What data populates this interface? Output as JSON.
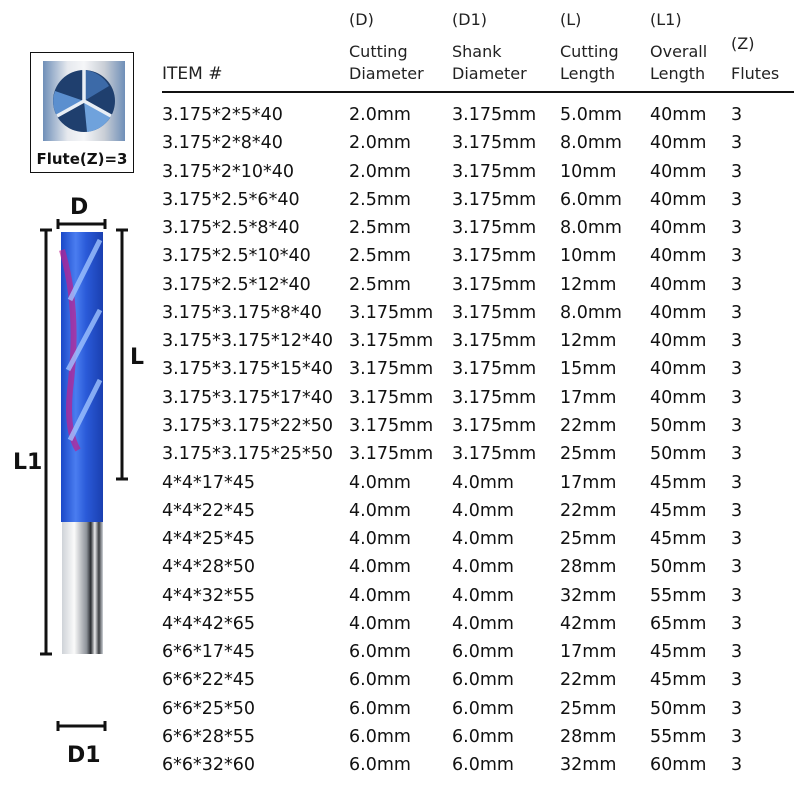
{
  "flute_badge": {
    "label": "Flute(Z)=3"
  },
  "diagram_labels": {
    "d": "D",
    "l": "L",
    "l1": "L1",
    "d1": "D1"
  },
  "columns": [
    {
      "code": "",
      "label1": "",
      "label2": "ITEM #"
    },
    {
      "code": "(D)",
      "label1": "Cutting",
      "label2": "Diameter"
    },
    {
      "code": "(D1)",
      "label1": "Shank",
      "label2": "Diameter"
    },
    {
      "code": "(L)",
      "label1": "Cutting",
      "label2": "Length"
    },
    {
      "code": "(L1)",
      "label1": "Overall",
      "label2": "Length"
    },
    {
      "code": "(Z)",
      "label1": "",
      "label2": "Flutes"
    }
  ],
  "rows": [
    [
      "3.175*2*5*40",
      "2.0mm",
      "3.175mm",
      "5.0mm",
      "40mm",
      "3"
    ],
    [
      "3.175*2*8*40",
      "2.0mm",
      "3.175mm",
      "8.0mm",
      "40mm",
      "3"
    ],
    [
      "3.175*2*10*40",
      "2.0mm",
      "3.175mm",
      "10mm",
      "40mm",
      "3"
    ],
    [
      "3.175*2.5*6*40",
      "2.5mm",
      "3.175mm",
      "6.0mm",
      "40mm",
      "3"
    ],
    [
      "3.175*2.5*8*40",
      "2.5mm",
      "3.175mm",
      "8.0mm",
      "40mm",
      "3"
    ],
    [
      "3.175*2.5*10*40",
      "2.5mm",
      "3.175mm",
      "10mm",
      "40mm",
      "3"
    ],
    [
      "3.175*2.5*12*40",
      "2.5mm",
      "3.175mm",
      "12mm",
      "40mm",
      "3"
    ],
    [
      "3.175*3.175*8*40",
      "3.175mm",
      "3.175mm",
      "8.0mm",
      "40mm",
      "3"
    ],
    [
      "3.175*3.175*12*40",
      "3.175mm",
      "3.175mm",
      "12mm",
      "40mm",
      "3"
    ],
    [
      "3.175*3.175*15*40",
      "3.175mm",
      "3.175mm",
      "15mm",
      "40mm",
      "3"
    ],
    [
      "3.175*3.175*17*40",
      "3.175mm",
      "3.175mm",
      "17mm",
      "40mm",
      "3"
    ],
    [
      "3.175*3.175*22*50",
      "3.175mm",
      "3.175mm",
      "22mm",
      "50mm",
      "3"
    ],
    [
      "3.175*3.175*25*50",
      "3.175mm",
      "3.175mm",
      "25mm",
      "50mm",
      "3"
    ],
    [
      "4*4*17*45",
      "4.0mm",
      "4.0mm",
      "17mm",
      "45mm",
      "3"
    ],
    [
      "4*4*22*45",
      "4.0mm",
      "4.0mm",
      "22mm",
      "45mm",
      "3"
    ],
    [
      "4*4*25*45",
      "4.0mm",
      "4.0mm",
      "25mm",
      "45mm",
      "3"
    ],
    [
      "4*4*28*50",
      "4.0mm",
      "4.0mm",
      "28mm",
      "50mm",
      "3"
    ],
    [
      "4*4*32*55",
      "4.0mm",
      "4.0mm",
      "32mm",
      "55mm",
      "3"
    ],
    [
      "4*4*42*65",
      "4.0mm",
      "4.0mm",
      "42mm",
      "65mm",
      "3"
    ],
    [
      "6*6*17*45",
      "6.0mm",
      "6.0mm",
      "17mm",
      "45mm",
      "3"
    ],
    [
      "6*6*22*45",
      "6.0mm",
      "6.0mm",
      "22mm",
      "45mm",
      "3"
    ],
    [
      "6*6*25*50",
      "6.0mm",
      "6.0mm",
      "25mm",
      "50mm",
      "3"
    ],
    [
      "6*6*28*55",
      "6.0mm",
      "6.0mm",
      "28mm",
      "55mm",
      "3"
    ],
    [
      "6*6*32*60",
      "6.0mm",
      "6.0mm",
      "32mm",
      "60mm",
      "3"
    ]
  ]
}
